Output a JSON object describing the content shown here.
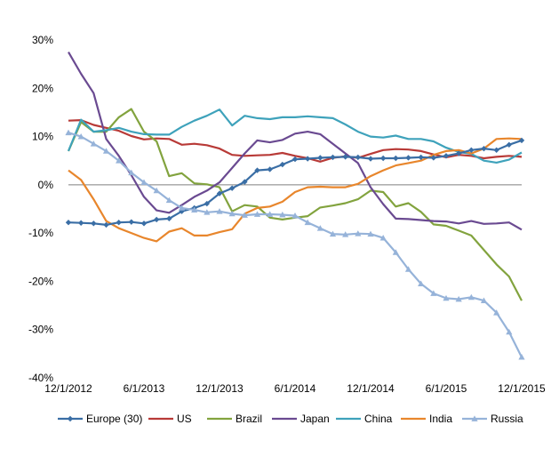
{
  "chart_data": {
    "type": "line",
    "title": "",
    "xlabel": "",
    "ylabel": "",
    "ylim": [
      -40,
      30
    ],
    "yticks": [
      {
        "value": 30,
        "label": "30%"
      },
      {
        "value": 20,
        "label": "20%"
      },
      {
        "value": 10,
        "label": "10%"
      },
      {
        "value": 0,
        "label": "0%"
      },
      {
        "value": -10,
        "label": "-10%"
      },
      {
        "value": -20,
        "label": "-20%"
      },
      {
        "value": -30,
        "label": "-30%"
      },
      {
        "value": -40,
        "label": "-40%"
      }
    ],
    "xticks": [
      {
        "index": 0,
        "label": "12/1/2012"
      },
      {
        "index": 6,
        "label": "6/1/2013"
      },
      {
        "index": 12,
        "label": "12/1/2013"
      },
      {
        "index": 18,
        "label": "6/1/2014"
      },
      {
        "index": 24,
        "label": "12/1/2014"
      },
      {
        "index": 30,
        "label": "6/1/2015"
      },
      {
        "index": 36,
        "label": "12/1/2015"
      }
    ],
    "x_dates": [
      "2012-12",
      "2013-01",
      "2013-02",
      "2013-03",
      "2013-04",
      "2013-05",
      "2013-06",
      "2013-07",
      "2013-08",
      "2013-09",
      "2013-10",
      "2013-11",
      "2013-12",
      "2014-01",
      "2014-02",
      "2014-03",
      "2014-04",
      "2014-05",
      "2014-06",
      "2014-07",
      "2014-08",
      "2014-09",
      "2014-10",
      "2014-11",
      "2014-12",
      "2015-01",
      "2015-02",
      "2015-03",
      "2015-04",
      "2015-05",
      "2015-06",
      "2015-07",
      "2015-08",
      "2015-09",
      "2015-10",
      "2015-11",
      "2015-12"
    ],
    "grid": false,
    "legend_position": "bottom",
    "series": [
      {
        "name": "Europe (30)",
        "color": "#3a6ea5",
        "marker": "diamond",
        "values": [
          -7.8,
          -7.9,
          -8.0,
          -8.3,
          -7.8,
          -7.7,
          -8.0,
          -7.2,
          -7.0,
          -5.5,
          -4.8,
          -3.9,
          -1.8,
          -0.7,
          0.6,
          3.0,
          3.2,
          4.2,
          5.3,
          5.4,
          5.6,
          5.7,
          5.8,
          5.7,
          5.4,
          5.5,
          5.5,
          5.6,
          5.7,
          5.6,
          6.0,
          6.5,
          7.2,
          7.5,
          7.2,
          8.3,
          9.2
        ]
      },
      {
        "name": "US",
        "color": "#b83a37",
        "marker": "none",
        "values": [
          13.3,
          13.4,
          12.4,
          11.8,
          11.2,
          10.1,
          9.4,
          9.6,
          9.5,
          8.3,
          8.5,
          8.2,
          7.5,
          6.2,
          6.0,
          6.1,
          6.2,
          6.6,
          6.0,
          5.5,
          4.8,
          5.6,
          5.9,
          5.6,
          6.4,
          7.2,
          7.4,
          7.3,
          7.0,
          6.3,
          5.7,
          6.2,
          6.0,
          5.5,
          5.8,
          6.0,
          5.8
        ]
      },
      {
        "name": "Brazil",
        "color": "#82a33e",
        "marker": "none",
        "values": [
          7.0,
          13.0,
          11.0,
          11.0,
          14.0,
          15.7,
          11.0,
          9.0,
          1.8,
          2.4,
          0.3,
          0.1,
          -0.5,
          -5.5,
          -4.2,
          -4.5,
          -6.8,
          -7.2,
          -6.8,
          -6.5,
          -4.7,
          -4.3,
          -3.8,
          -3.0,
          -1.2,
          -1.5,
          -4.5,
          -3.8,
          -5.6,
          -8.2,
          -8.5,
          -9.5,
          -10.5,
          -13.5,
          -16.5,
          -19.0,
          -24.0
        ]
      },
      {
        "name": "Japan",
        "color": "#6a4a91",
        "marker": "none",
        "values": [
          27.5,
          23.0,
          19.0,
          9.5,
          6.0,
          2.0,
          -2.5,
          -5.3,
          -5.8,
          -4.2,
          -2.5,
          -1.2,
          0.5,
          3.5,
          6.5,
          9.2,
          8.8,
          9.3,
          10.6,
          11.0,
          10.5,
          8.5,
          6.5,
          4.5,
          -0.5,
          -4.0,
          -7.0,
          -7.1,
          -7.3,
          -7.5,
          -7.6,
          -8.0,
          -7.5,
          -8.1,
          -8.0,
          -7.8,
          -9.3
        ]
      },
      {
        "name": "China",
        "color": "#3ea2bb",
        "marker": "none",
        "values": [
          7.0,
          13.5,
          11.0,
          11.3,
          11.8,
          11.0,
          10.5,
          10.4,
          10.4,
          12.0,
          13.3,
          14.3,
          15.6,
          12.3,
          14.3,
          13.8,
          13.6,
          14.0,
          14.0,
          14.2,
          14.0,
          13.8,
          12.5,
          11.0,
          10.0,
          9.8,
          10.2,
          9.5,
          9.5,
          9.0,
          7.7,
          6.8,
          6.4,
          5.0,
          4.6,
          5.2,
          6.7
        ]
      },
      {
        "name": "India",
        "color": "#e8862c",
        "marker": "none",
        "values": [
          3.0,
          1.0,
          -3.0,
          -7.5,
          -9.0,
          -10.0,
          -11.0,
          -11.7,
          -9.7,
          -9.0,
          -10.5,
          -10.5,
          -9.8,
          -9.2,
          -6.0,
          -4.8,
          -4.5,
          -3.5,
          -1.5,
          -0.5,
          -0.4,
          -0.5,
          -0.5,
          0.2,
          1.8,
          3.0,
          4.0,
          4.5,
          5.0,
          6.2,
          7.0,
          7.2,
          6.5,
          7.5,
          9.5,
          9.6,
          9.5
        ]
      },
      {
        "name": "Russia",
        "color": "#96b3d9",
        "marker": "triangle",
        "values": [
          10.8,
          10.0,
          8.5,
          7.0,
          5.0,
          2.5,
          0.5,
          -1.2,
          -3.2,
          -4.8,
          -5.2,
          -5.7,
          -5.5,
          -6.0,
          -6.3,
          -6.1,
          -6.1,
          -6.2,
          -6.4,
          -7.8,
          -9.0,
          -10.2,
          -10.3,
          -10.1,
          -10.2,
          -11.0,
          -14.0,
          -17.5,
          -20.5,
          -22.5,
          -23.5,
          -23.7,
          -23.3,
          -24.0,
          -26.5,
          -30.5,
          -35.7
        ]
      }
    ]
  }
}
